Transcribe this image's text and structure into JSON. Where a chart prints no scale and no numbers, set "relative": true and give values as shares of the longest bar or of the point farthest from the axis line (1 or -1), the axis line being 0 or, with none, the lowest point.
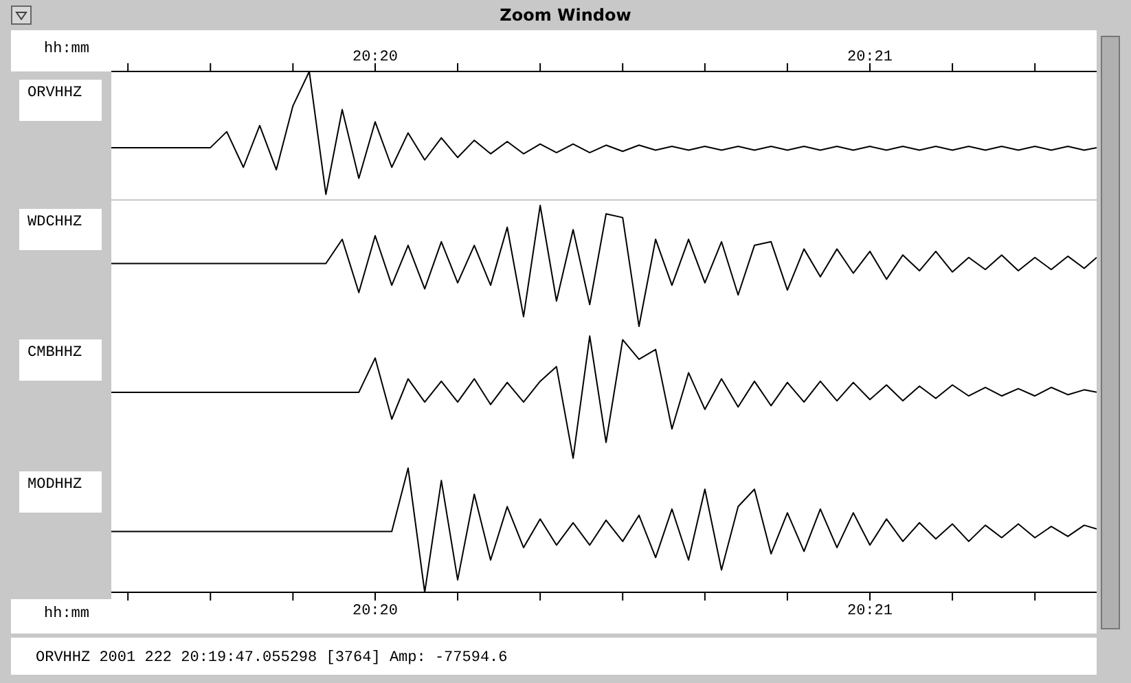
{
  "chart_data": [
    {
      "type": "line",
      "title": "Zoom Window",
      "relative": true,
      "xlim": [
        20.32444,
        20.35764
      ],
      "xlabel": "hh:mm",
      "xticks": [
        {
          "value": 20.325,
          "label": null
        },
        {
          "value": 20.32778,
          "label": null
        },
        {
          "value": 20.33056,
          "label": null
        },
        {
          "value": 20.33333,
          "label": "20:20"
        },
        {
          "value": 20.33611,
          "label": null
        },
        {
          "value": 20.33889,
          "label": null
        },
        {
          "value": 20.34167,
          "label": null
        },
        {
          "value": 20.34444,
          "label": null
        },
        {
          "value": 20.34722,
          "label": null
        },
        {
          "value": 20.35,
          "label": "20:21"
        },
        {
          "value": 20.35278,
          "label": null
        },
        {
          "value": 20.35556,
          "label": null
        }
      ],
      "x": [
        20.32444,
        20.325,
        20.32556,
        20.32611,
        20.32667,
        20.32722,
        20.32778,
        20.32833,
        20.32889,
        20.32944,
        20.33,
        20.33056,
        20.33111,
        20.33167,
        20.33222,
        20.33278,
        20.33333,
        20.33389,
        20.33444,
        20.335,
        20.33556,
        20.33611,
        20.33667,
        20.33722,
        20.33778,
        20.33833,
        20.33889,
        20.33944,
        20.34,
        20.34056,
        20.34111,
        20.34167,
        20.34222,
        20.34278,
        20.34333,
        20.34389,
        20.34444,
        20.345,
        20.34556,
        20.34611,
        20.34667,
        20.34722,
        20.34778,
        20.34833,
        20.34889,
        20.34944,
        20.35,
        20.35056,
        20.35111,
        20.35167,
        20.35222,
        20.35278,
        20.35333,
        20.35389,
        20.35444,
        20.355,
        20.35556,
        20.35611,
        20.35667,
        20.35722,
        20.35764
      ],
      "series": [
        {
          "name": "ORVHHZ",
          "color": "#000000",
          "values": [
            0.38,
            0.38,
            0.38,
            0.38,
            0.38,
            0.38,
            0.38,
            0.51,
            0.22,
            0.56,
            0.2,
            0.72,
            1,
            0,
            0.69,
            0.13,
            0.59,
            0.22,
            0.5,
            0.28,
            0.46,
            0.3,
            0.44,
            0.33,
            0.43,
            0.33,
            0.41,
            0.34,
            0.41,
            0.34,
            0.4,
            0.35,
            0.4,
            0.36,
            0.39,
            0.36,
            0.39,
            0.36,
            0.39,
            0.36,
            0.39,
            0.36,
            0.39,
            0.36,
            0.39,
            0.36,
            0.39,
            0.36,
            0.39,
            0.36,
            0.39,
            0.36,
            0.39,
            0.36,
            0.39,
            0.36,
            0.39,
            0.36,
            0.39,
            0.36,
            0.38
          ]
        }
      ]
    },
    {
      "type": "line",
      "relative": true,
      "xlim": [
        20.32444,
        20.35764
      ],
      "x": [
        20.32444,
        20.325,
        20.32556,
        20.32611,
        20.32667,
        20.32722,
        20.32778,
        20.32833,
        20.32889,
        20.32944,
        20.33,
        20.33056,
        20.33111,
        20.33167,
        20.33222,
        20.33278,
        20.33333,
        20.33389,
        20.33444,
        20.335,
        20.33556,
        20.33611,
        20.33667,
        20.33722,
        20.33778,
        20.33833,
        20.33889,
        20.33944,
        20.34,
        20.34056,
        20.34111,
        20.34167,
        20.34222,
        20.34278,
        20.34333,
        20.34389,
        20.34444,
        20.345,
        20.34556,
        20.34611,
        20.34667,
        20.34722,
        20.34778,
        20.34833,
        20.34889,
        20.34944,
        20.35,
        20.35056,
        20.35111,
        20.35167,
        20.35222,
        20.35278,
        20.35333,
        20.35389,
        20.35444,
        20.355,
        20.35556,
        20.35611,
        20.35667,
        20.35722,
        20.35764
      ],
      "series": [
        {
          "name": "WDCHHZ",
          "color": "#000000",
          "values": [
            0.52,
            0.52,
            0.52,
            0.52,
            0.52,
            0.52,
            0.52,
            0.52,
            0.52,
            0.52,
            0.52,
            0.52,
            0.52,
            0.52,
            0.72,
            0.28,
            0.75,
            0.34,
            0.67,
            0.31,
            0.7,
            0.36,
            0.67,
            0.34,
            0.82,
            0.08,
            1,
            0.21,
            0.8,
            0.18,
            0.93,
            0.9,
            0,
            0.72,
            0.34,
            0.72,
            0.36,
            0.7,
            0.26,
            0.67,
            0.7,
            0.3,
            0.64,
            0.41,
            0.64,
            0.44,
            0.62,
            0.39,
            0.59,
            0.46,
            0.62,
            0.45,
            0.57,
            0.47,
            0.59,
            0.46,
            0.57,
            0.47,
            0.58,
            0.48,
            0.57
          ]
        }
      ]
    },
    {
      "type": "line",
      "relative": true,
      "xlim": [
        20.32444,
        20.35764
      ],
      "x": [
        20.32444,
        20.325,
        20.32556,
        20.32611,
        20.32667,
        20.32722,
        20.32778,
        20.32833,
        20.32889,
        20.32944,
        20.33,
        20.33056,
        20.33111,
        20.33167,
        20.33222,
        20.33278,
        20.33333,
        20.33389,
        20.33444,
        20.335,
        20.33556,
        20.33611,
        20.33667,
        20.33722,
        20.33778,
        20.33833,
        20.33889,
        20.33944,
        20.34,
        20.34056,
        20.34111,
        20.34167,
        20.34222,
        20.34278,
        20.34333,
        20.34389,
        20.34444,
        20.345,
        20.34556,
        20.34611,
        20.34667,
        20.34722,
        20.34778,
        20.34833,
        20.34889,
        20.34944,
        20.35,
        20.35056,
        20.35111,
        20.35167,
        20.35222,
        20.35278,
        20.35333,
        20.35389,
        20.35444,
        20.355,
        20.35556,
        20.35611,
        20.35667,
        20.35722,
        20.35764
      ],
      "series": [
        {
          "name": "CMBHHZ",
          "color": "#000000",
          "values": [
            0.54,
            0.54,
            0.54,
            0.54,
            0.54,
            0.54,
            0.54,
            0.54,
            0.54,
            0.54,
            0.54,
            0.54,
            0.54,
            0.54,
            0.54,
            0.54,
            0.82,
            0.32,
            0.65,
            0.46,
            0.63,
            0.46,
            0.65,
            0.44,
            0.62,
            0.46,
            0.63,
            0.75,
            0,
            1,
            0.13,
            0.97,
            0.81,
            0.89,
            0.24,
            0.7,
            0.4,
            0.65,
            0.42,
            0.63,
            0.43,
            0.62,
            0.46,
            0.63,
            0.47,
            0.62,
            0.48,
            0.6,
            0.47,
            0.59,
            0.49,
            0.6,
            0.51,
            0.58,
            0.51,
            0.57,
            0.51,
            0.58,
            0.52,
            0.56,
            0.54
          ]
        }
      ]
    },
    {
      "type": "line",
      "relative": true,
      "xlim": [
        20.32444,
        20.35764
      ],
      "xlabel": "hh:mm",
      "xticks": [
        {
          "value": 20.325,
          "label": null
        },
        {
          "value": 20.32778,
          "label": null
        },
        {
          "value": 20.33056,
          "label": null
        },
        {
          "value": 20.33333,
          "label": "20:20"
        },
        {
          "value": 20.33611,
          "label": null
        },
        {
          "value": 20.33889,
          "label": null
        },
        {
          "value": 20.34167,
          "label": null
        },
        {
          "value": 20.34444,
          "label": null
        },
        {
          "value": 20.34722,
          "label": null
        },
        {
          "value": 20.35,
          "label": "20:21"
        },
        {
          "value": 20.35278,
          "label": null
        },
        {
          "value": 20.35556,
          "label": null
        }
      ],
      "annotations": [
        "ORVHHZ 2001 222 20:19:47.055298 [3764] Amp: -77594.6"
      ],
      "x": [
        20.32444,
        20.325,
        20.32556,
        20.32611,
        20.32667,
        20.32722,
        20.32778,
        20.32833,
        20.32889,
        20.32944,
        20.33,
        20.33056,
        20.33111,
        20.33167,
        20.33222,
        20.33278,
        20.33333,
        20.33389,
        20.33444,
        20.335,
        20.33556,
        20.33611,
        20.33667,
        20.33722,
        20.33778,
        20.33833,
        20.33889,
        20.33944,
        20.34,
        20.34056,
        20.34111,
        20.34167,
        20.34222,
        20.34278,
        20.34333,
        20.34389,
        20.34444,
        20.345,
        20.34556,
        20.34611,
        20.34667,
        20.34722,
        20.34778,
        20.34833,
        20.34889,
        20.34944,
        20.35,
        20.35056,
        20.35111,
        20.35167,
        20.35222,
        20.35278,
        20.35333,
        20.35389,
        20.35444,
        20.355,
        20.35556,
        20.35611,
        20.35667,
        20.35722,
        20.35764
      ],
      "series": [
        {
          "name": "MODHHZ",
          "color": "#000000",
          "values": [
            0.49,
            0.49,
            0.49,
            0.49,
            0.49,
            0.49,
            0.49,
            0.49,
            0.49,
            0.49,
            0.49,
            0.49,
            0.49,
            0.49,
            0.49,
            0.49,
            0.49,
            0.49,
            1,
            0,
            0.9,
            0.1,
            0.79,
            0.26,
            0.69,
            0.36,
            0.59,
            0.38,
            0.56,
            0.38,
            0.58,
            0.41,
            0.62,
            0.28,
            0.67,
            0.26,
            0.83,
            0.18,
            0.69,
            0.83,
            0.31,
            0.64,
            0.33,
            0.67,
            0.36,
            0.64,
            0.38,
            0.59,
            0.41,
            0.56,
            0.43,
            0.55,
            0.41,
            0.54,
            0.44,
            0.55,
            0.44,
            0.53,
            0.45,
            0.54,
            0.51
          ]
        }
      ]
    }
  ]
}
